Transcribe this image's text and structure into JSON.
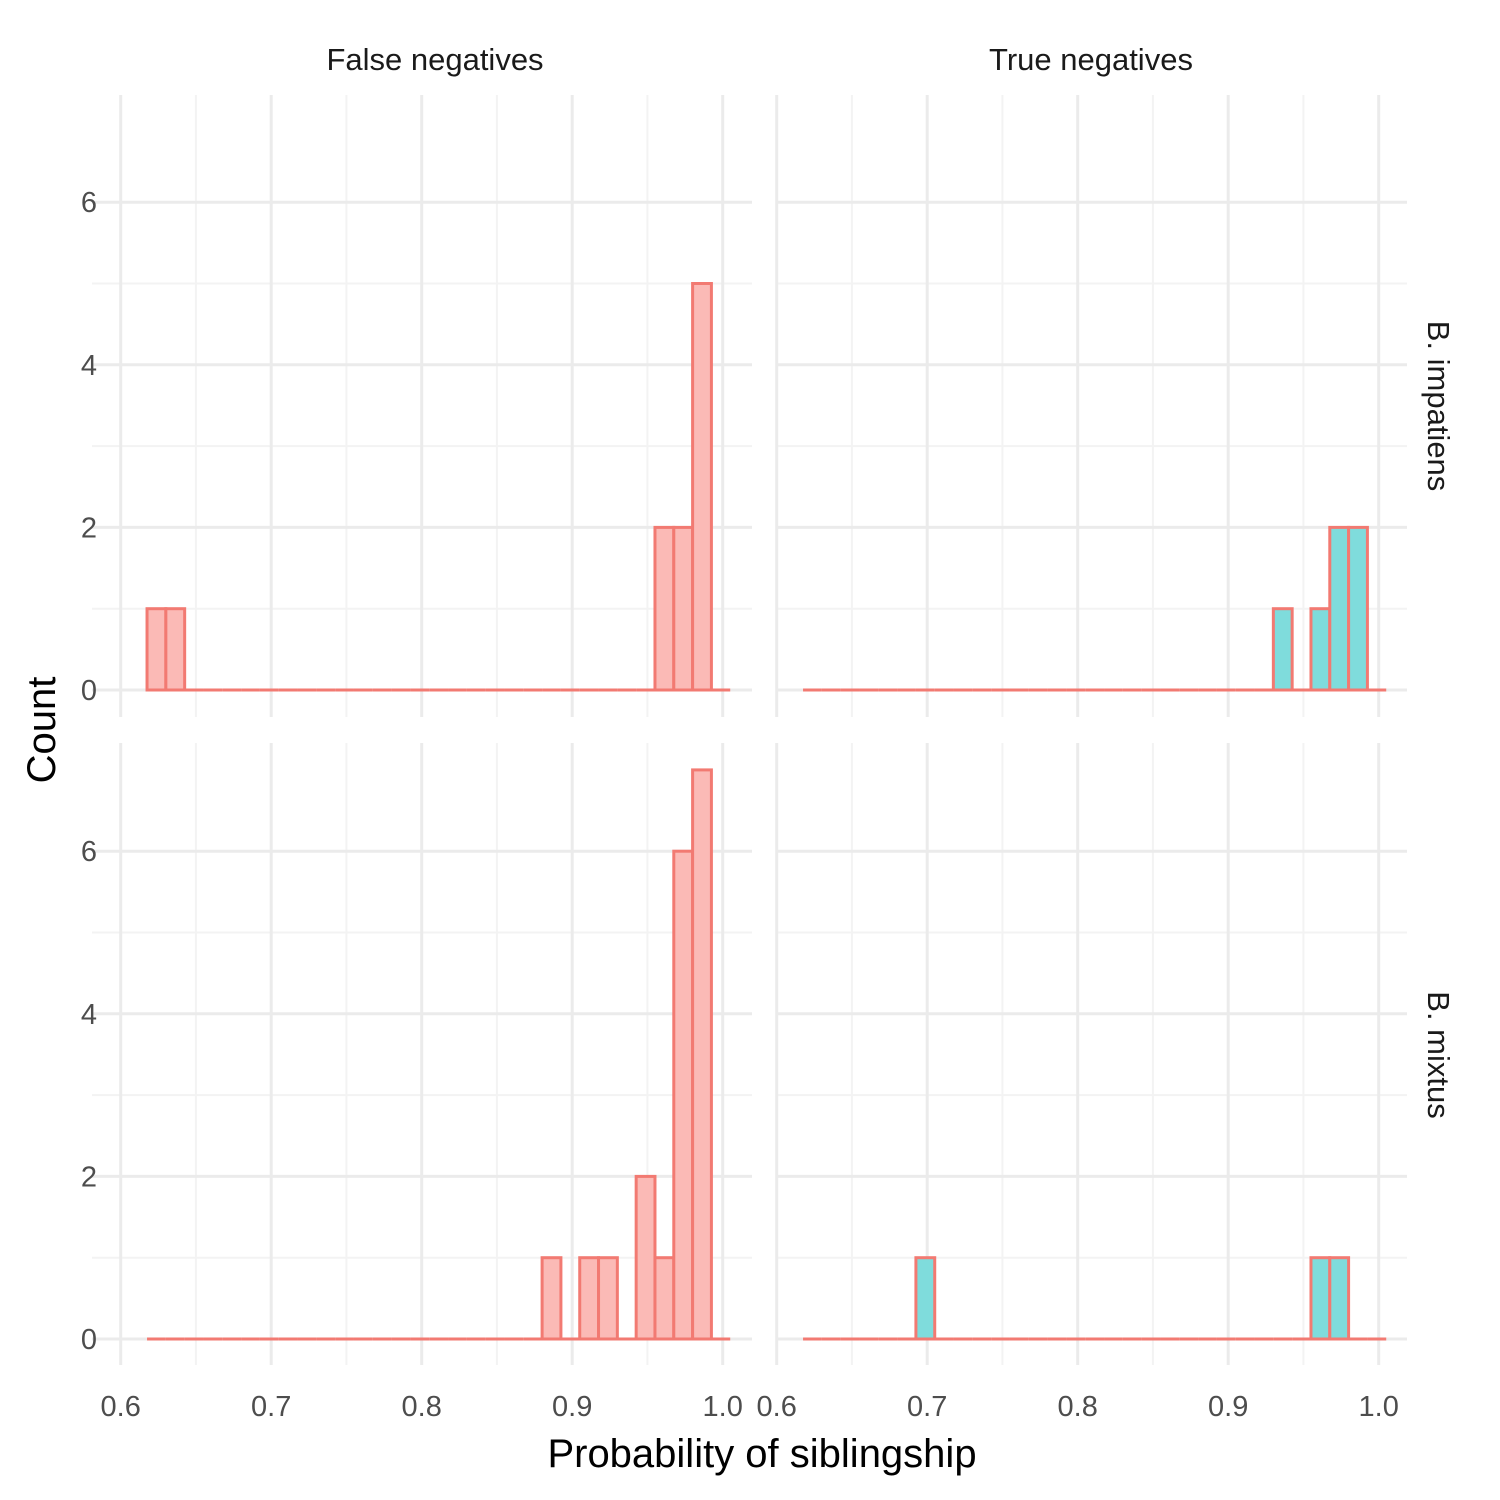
{
  "chart_data": {
    "type": "bar",
    "subtype": "faceted histogram",
    "xlabel": "Probability of siblingship",
    "ylabel": "Count",
    "xlim": [
      0.6,
      1.0
    ],
    "ylim": [
      0,
      7
    ],
    "x_ticks": [
      "0.6",
      "0.7",
      "0.8",
      "0.9",
      "1.0"
    ],
    "y_ticks": [
      "0",
      "2",
      "4",
      "6"
    ],
    "grid": true,
    "legend": "none",
    "bin_width": 0.0125,
    "bin_start": 0.6175,
    "columns": [
      "False negatives",
      "True negatives"
    ],
    "rows": [
      "B. impatiens",
      "B. mixtus"
    ],
    "colors": {
      "false_negatives_fill": "#fbbab6",
      "true_negatives_fill": "#7fdcdc",
      "outline": "#f27a72",
      "grid_major": "#ebebeb",
      "grid_minor": "#f3f3f3"
    },
    "panels": [
      {
        "column": "False negatives",
        "row": "B. impatiens",
        "bins": [
          {
            "x": 0.6238,
            "count": 1
          },
          {
            "x": 0.6363,
            "count": 1
          },
          {
            "x": 0.9663,
            "count": 2
          },
          {
            "x": 0.9788,
            "count": 2
          },
          {
            "x": 0.9913,
            "count": 5
          }
        ]
      },
      {
        "column": "True negatives",
        "row": "B. impatiens",
        "bins": [
          {
            "x": 0.9413,
            "count": 1
          },
          {
            "x": 0.9663,
            "count": 1
          },
          {
            "x": 0.9788,
            "count": 2
          },
          {
            "x": 0.9913,
            "count": 2
          }
        ]
      },
      {
        "column": "False negatives",
        "row": "B. mixtus",
        "bins": [
          {
            "x": 0.8913,
            "count": 1
          },
          {
            "x": 0.9163,
            "count": 1
          },
          {
            "x": 0.9288,
            "count": 1
          },
          {
            "x": 0.9538,
            "count": 2
          },
          {
            "x": 0.9663,
            "count": 1
          },
          {
            "x": 0.9788,
            "count": 6
          },
          {
            "x": 0.9913,
            "count": 7
          }
        ]
      },
      {
        "column": "True negatives",
        "row": "B. mixtus",
        "bins": [
          {
            "x": 0.7,
            "count": 1
          },
          {
            "x": 0.9663,
            "count": 1
          },
          {
            "x": 0.9788,
            "count": 1
          }
        ]
      }
    ]
  }
}
